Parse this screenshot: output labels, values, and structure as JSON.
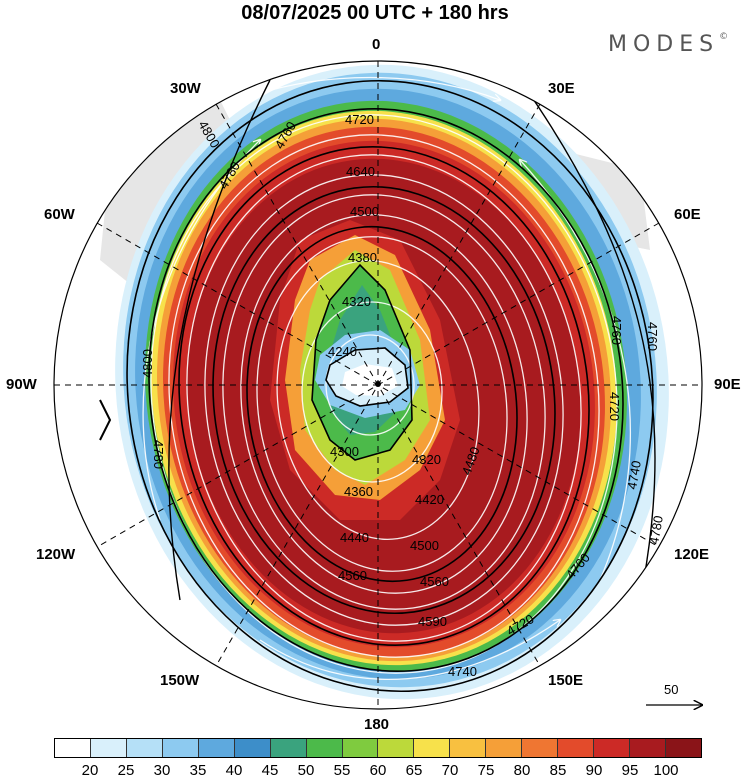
{
  "header": {
    "title": "08/07/2025  00 UTC  + 180 hrs",
    "brand": "MODES"
  },
  "longitude_labels": {
    "n0": "0",
    "n30e": "30E",
    "n30w": "30W",
    "n60e": "60E",
    "n60w": "60W",
    "n90e": "90E",
    "n90w": "90W",
    "n120e": "120E",
    "n120w": "120W",
    "n150e": "150E",
    "n150w": "150W",
    "n180": "180"
  },
  "contour_labels": [
    "4720",
    "4760",
    "4800",
    "4780",
    "4640",
    "4560",
    "4500",
    "4380",
    "4320",
    "4240",
    "4360",
    "4300",
    "4320",
    "4420",
    "4480",
    "4500",
    "4560",
    "4590",
    "4720",
    "4740",
    "4740",
    "4780",
    "4800",
    "4760",
    "4720",
    "4740",
    "4760",
    "4300",
    "4360",
    "4440"
  ],
  "reference_vector": {
    "label": "50"
  },
  "colorbar": {
    "colors": [
      "#ffffff",
      "#d9f0fb",
      "#b5e0f7",
      "#8dcaf0",
      "#5ea9de",
      "#3d8ec9",
      "#3aa37e",
      "#4cba4a",
      "#7fcb3f",
      "#bcd93a",
      "#f7e14b",
      "#f8c040",
      "#f59f38",
      "#ef7632",
      "#e34b2b",
      "#cc2a26",
      "#a81b1f",
      "#8a1418"
    ],
    "ticks": [
      "20",
      "25",
      "30",
      "35",
      "40",
      "45",
      "50",
      "55",
      "60",
      "65",
      "70",
      "75",
      "80",
      "85",
      "90",
      "95",
      "100"
    ]
  }
}
